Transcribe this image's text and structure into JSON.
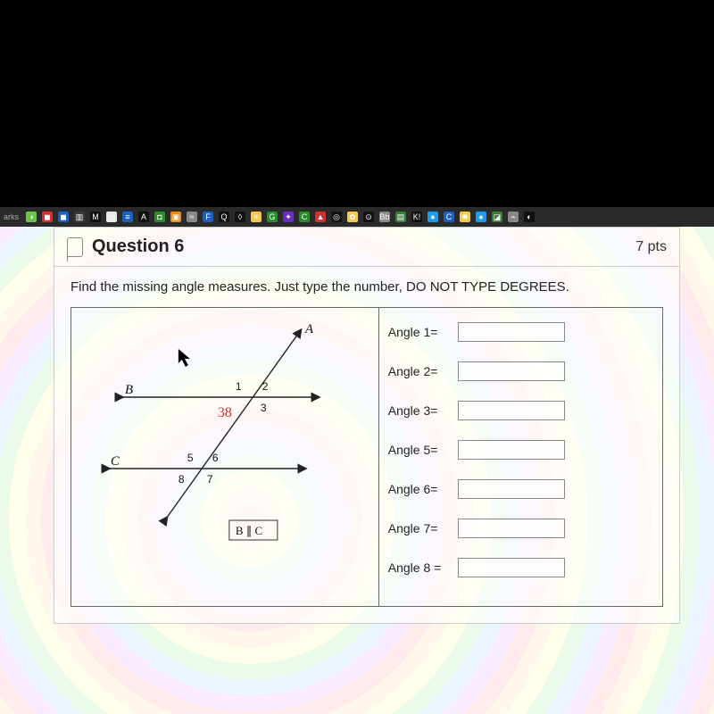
{
  "browser": {
    "bookmarks_label": "arks",
    "icons": [
      {
        "bg": "#6cc24a",
        "glyph": "◑"
      },
      {
        "bg": "#d03030",
        "glyph": "◼"
      },
      {
        "bg": "#1e5fbf",
        "glyph": "◼"
      },
      {
        "bg": "#3a3a3a",
        "glyph": "▥"
      },
      {
        "bg": "#111",
        "glyph": "M"
      },
      {
        "bg": "#e8e8e8",
        "glyph": "▭"
      },
      {
        "bg": "#1e5fbf",
        "glyph": "≡"
      },
      {
        "bg": "#111",
        "glyph": "A"
      },
      {
        "bg": "#2b8c2b",
        "glyph": "◘"
      },
      {
        "bg": "#e88b17",
        "glyph": "▣"
      },
      {
        "bg": "#888",
        "glyph": "≈"
      },
      {
        "bg": "#1e5fbf",
        "glyph": "F"
      },
      {
        "bg": "#111",
        "glyph": "Q"
      },
      {
        "bg": "#111",
        "glyph": "◊"
      },
      {
        "bg": "#f2c94c",
        "glyph": "✳"
      },
      {
        "bg": "#2b8c2b",
        "glyph": "G"
      },
      {
        "bg": "#6a2bbf",
        "glyph": "✦"
      },
      {
        "bg": "#2b8c2b",
        "glyph": "C"
      },
      {
        "bg": "#d03030",
        "glyph": "▲"
      },
      {
        "bg": "#111",
        "glyph": "◎"
      },
      {
        "bg": "#f2c94c",
        "glyph": "✿"
      },
      {
        "bg": "#111",
        "glyph": "⊙"
      },
      {
        "bg": "#888",
        "glyph": "Bb"
      },
      {
        "bg": "#3a7a3a",
        "glyph": "▤"
      },
      {
        "bg": "#111",
        "glyph": "K!"
      },
      {
        "bg": "#1e9be8",
        "glyph": "●"
      },
      {
        "bg": "#1e5fbf",
        "glyph": "C"
      },
      {
        "bg": "#f2c94c",
        "glyph": "✺"
      },
      {
        "bg": "#1e9be8",
        "glyph": "●"
      },
      {
        "bg": "#3a7a3a",
        "glyph": "◪"
      },
      {
        "bg": "#888",
        "glyph": "⌁"
      },
      {
        "bg": "#111",
        "glyph": "◐"
      }
    ]
  },
  "question": {
    "title": "Question 6",
    "points": "7 pts",
    "prompt": "Find the missing angle measures. Just type the number, DO NOT TYPE DEGREES.",
    "diagram": {
      "points": {
        "A": "A",
        "B": "B",
        "C": "C"
      },
      "angle_labels": {
        "1": "1",
        "2": "2",
        "3": "3",
        "5": "5",
        "6": "6",
        "7": "7",
        "8": "8"
      },
      "given_angle": "38",
      "parallel_label": "B ∥ C",
      "colors": {
        "line": "#222222",
        "given": "#d0342c",
        "label": "#111111"
      }
    },
    "answers": [
      {
        "label": "Angle 1=",
        "value": ""
      },
      {
        "label": "Angle 2=",
        "value": ""
      },
      {
        "label": "Angle 3=",
        "value": ""
      },
      {
        "label": "Angle 5=",
        "value": ""
      },
      {
        "label": "Angle 6=",
        "value": ""
      },
      {
        "label": "Angle 7=",
        "value": ""
      },
      {
        "label": "Angle 8 =",
        "value": ""
      }
    ]
  }
}
